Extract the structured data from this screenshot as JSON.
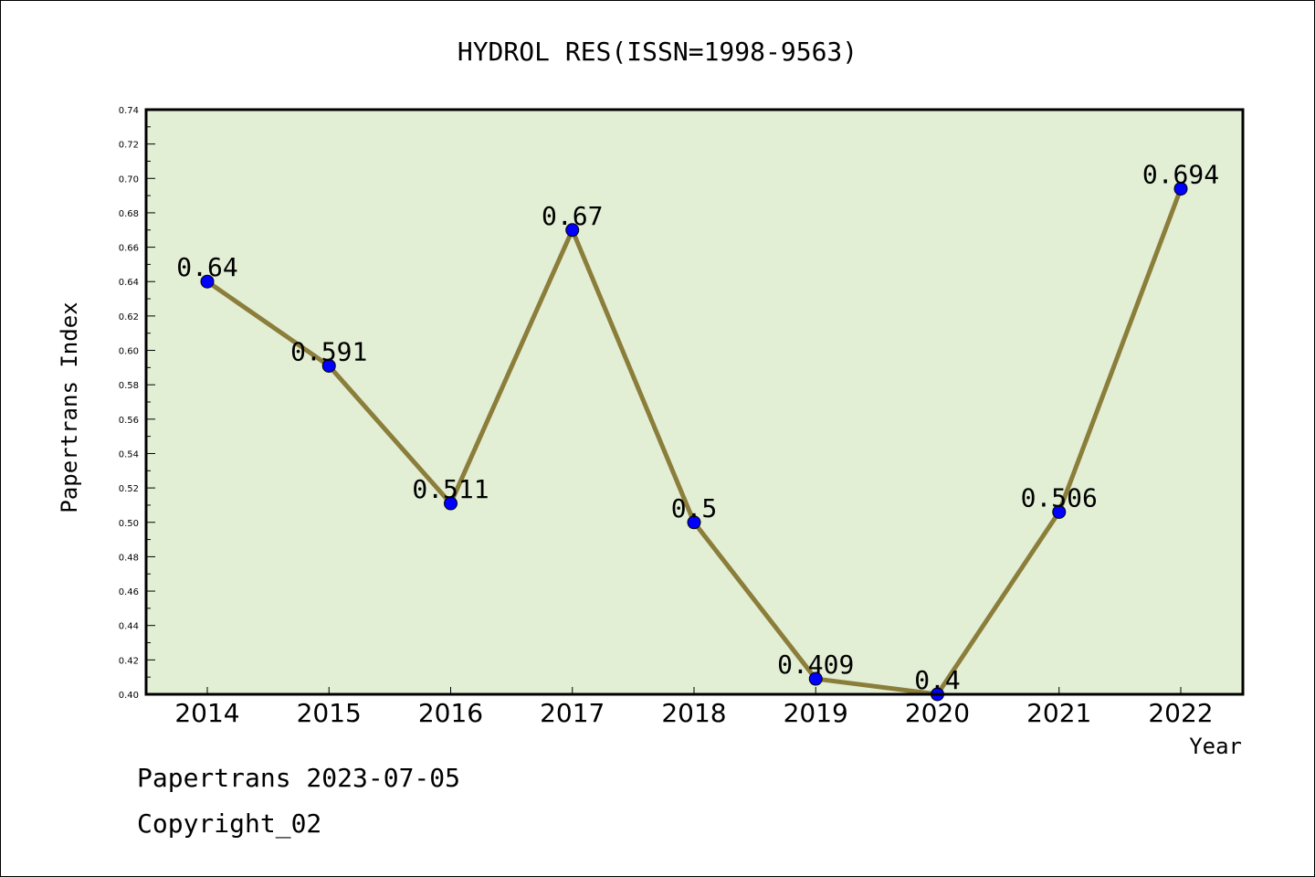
{
  "chart_data": {
    "type": "line",
    "title": "HYDROL RES(ISSN=1998-9563)",
    "xlabel": "Year",
    "ylabel": "Papertrans Index",
    "categories": [
      "2014",
      "2015",
      "2016",
      "2017",
      "2018",
      "2019",
      "2020",
      "2021",
      "2022"
    ],
    "series": [
      {
        "values": [
          0.64,
          0.591,
          0.511,
          0.67,
          0.5,
          0.409,
          0.4,
          0.506,
          0.694
        ],
        "labels": [
          "0.64",
          "0.591",
          "0.511",
          "0.67",
          "0.5",
          "0.409",
          "0.4",
          "0.506",
          "0.694"
        ]
      }
    ],
    "ylim": [
      0.4,
      0.74
    ],
    "yticks": [
      "0.40",
      "0.42",
      "0.44",
      "0.46",
      "0.48",
      "0.50",
      "0.52",
      "0.54",
      "0.56",
      "0.58",
      "0.60",
      "0.62",
      "0.64",
      "0.66",
      "0.68",
      "0.70",
      "0.72",
      "0.74"
    ],
    "grid": false,
    "colors": {
      "plot_background": "#e2efd5",
      "line": "#8b7d3a",
      "marker": "#0000ff"
    }
  },
  "footer": {
    "line1": "Papertrans 2023-07-05",
    "line2": "Copyright_02"
  }
}
